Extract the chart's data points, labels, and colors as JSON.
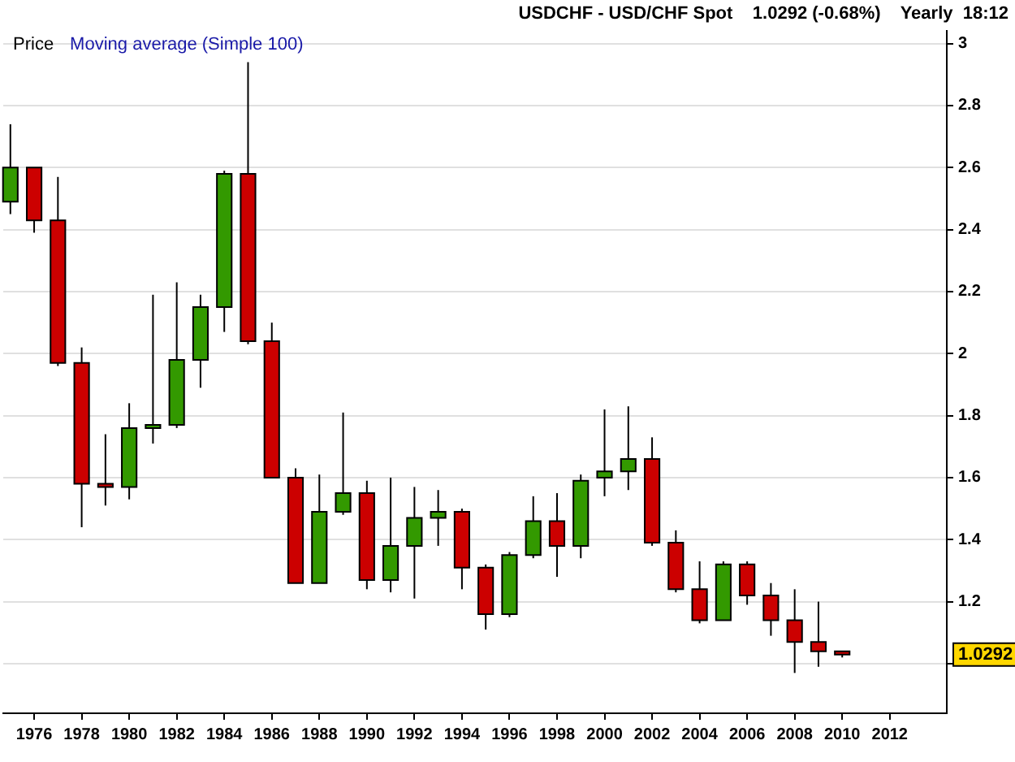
{
  "chart_data": {
    "type": "candlestick",
    "title": "USDCHF - USD/CHF Spot    1.0292 (-0.68%)    Yearly  18:12",
    "annotations": [
      "Price",
      "Moving average (Simple 100)",
      "1.0292"
    ],
    "x": [
      1975,
      1976,
      1977,
      1978,
      1979,
      1980,
      1981,
      1982,
      1983,
      1984,
      1985,
      1986,
      1987,
      1988,
      1989,
      1990,
      1991,
      1992,
      1993,
      1994,
      1995,
      1996,
      1997,
      1998,
      1999,
      2000,
      2001,
      2002,
      2003,
      2004,
      2005,
      2006,
      2007,
      2008,
      2009,
      2010
    ],
    "ohlc": [
      [
        2.49,
        2.74,
        2.45,
        2.6
      ],
      [
        2.6,
        2.6,
        2.39,
        2.43
      ],
      [
        2.43,
        2.57,
        1.96,
        1.97
      ],
      [
        1.97,
        2.02,
        1.44,
        1.58
      ],
      [
        1.58,
        1.74,
        1.51,
        1.57
      ],
      [
        1.57,
        1.84,
        1.53,
        1.76
      ],
      [
        1.76,
        2.19,
        1.71,
        1.77
      ],
      [
        1.77,
        2.23,
        1.76,
        1.98
      ],
      [
        1.98,
        2.19,
        1.89,
        2.15
      ],
      [
        2.15,
        2.59,
        2.07,
        2.58
      ],
      [
        2.58,
        2.94,
        2.03,
        2.04
      ],
      [
        2.04,
        2.1,
        1.6,
        1.6
      ],
      [
        1.6,
        1.63,
        1.26,
        1.26
      ],
      [
        1.26,
        1.61,
        1.26,
        1.49
      ],
      [
        1.49,
        1.81,
        1.48,
        1.55
      ],
      [
        1.55,
        1.59,
        1.24,
        1.27
      ],
      [
        1.27,
        1.6,
        1.23,
        1.38
      ],
      [
        1.38,
        1.57,
        1.21,
        1.47
      ],
      [
        1.47,
        1.56,
        1.38,
        1.49
      ],
      [
        1.49,
        1.5,
        1.24,
        1.31
      ],
      [
        1.31,
        1.32,
        1.11,
        1.16
      ],
      [
        1.16,
        1.36,
        1.15,
        1.35
      ],
      [
        1.35,
        1.54,
        1.34,
        1.46
      ],
      [
        1.46,
        1.55,
        1.28,
        1.38
      ],
      [
        1.38,
        1.61,
        1.34,
        1.59
      ],
      [
        1.6,
        1.82,
        1.54,
        1.62
      ],
      [
        1.62,
        1.83,
        1.56,
        1.66
      ],
      [
        1.66,
        1.73,
        1.38,
        1.39
      ],
      [
        1.39,
        1.43,
        1.23,
        1.24
      ],
      [
        1.24,
        1.33,
        1.13,
        1.14
      ],
      [
        1.14,
        1.33,
        1.14,
        1.32
      ],
      [
        1.32,
        1.33,
        1.19,
        1.22
      ],
      [
        1.22,
        1.26,
        1.09,
        1.14
      ],
      [
        1.14,
        1.24,
        0.97,
        1.07
      ],
      [
        1.07,
        1.2,
        0.99,
        1.04
      ],
      [
        1.04,
        1.04,
        1.02,
        1.0292
      ]
    ],
    "colors": [
      "#339900",
      "#cc0000",
      "#cc0000",
      "#cc0000",
      "#cc0000",
      "#339900",
      "#339900",
      "#339900",
      "#339900",
      "#339900",
      "#cc0000",
      "#cc0000",
      "#cc0000",
      "#339900",
      "#339900",
      "#cc0000",
      "#339900",
      "#339900",
      "#339900",
      "#cc0000",
      "#cc0000",
      "#339900",
      "#339900",
      "#cc0000",
      "#339900",
      "#339900",
      "#339900",
      "#cc0000",
      "#cc0000",
      "#cc0000",
      "#339900",
      "#cc0000",
      "#cc0000",
      "#cc0000",
      "#cc0000",
      "#cc0000"
    ],
    "xlim": [
      1974.7,
      2014.4
    ],
    "xticks": [
      1976,
      1978,
      1980,
      1982,
      1984,
      1986,
      1988,
      1990,
      1992,
      1994,
      1996,
      1998,
      2000,
      2002,
      2004,
      2006,
      2008,
      2010,
      2012
    ],
    "ylim": [
      0.84,
      3.04
    ],
    "yticks": [
      {
        "value": 1,
        "label": null
      },
      1.2,
      1.4,
      1.6,
      1.8,
      2,
      2.2,
      2.4,
      2.6,
      2.8,
      3
    ],
    "grid": "y",
    "legend": false
  }
}
